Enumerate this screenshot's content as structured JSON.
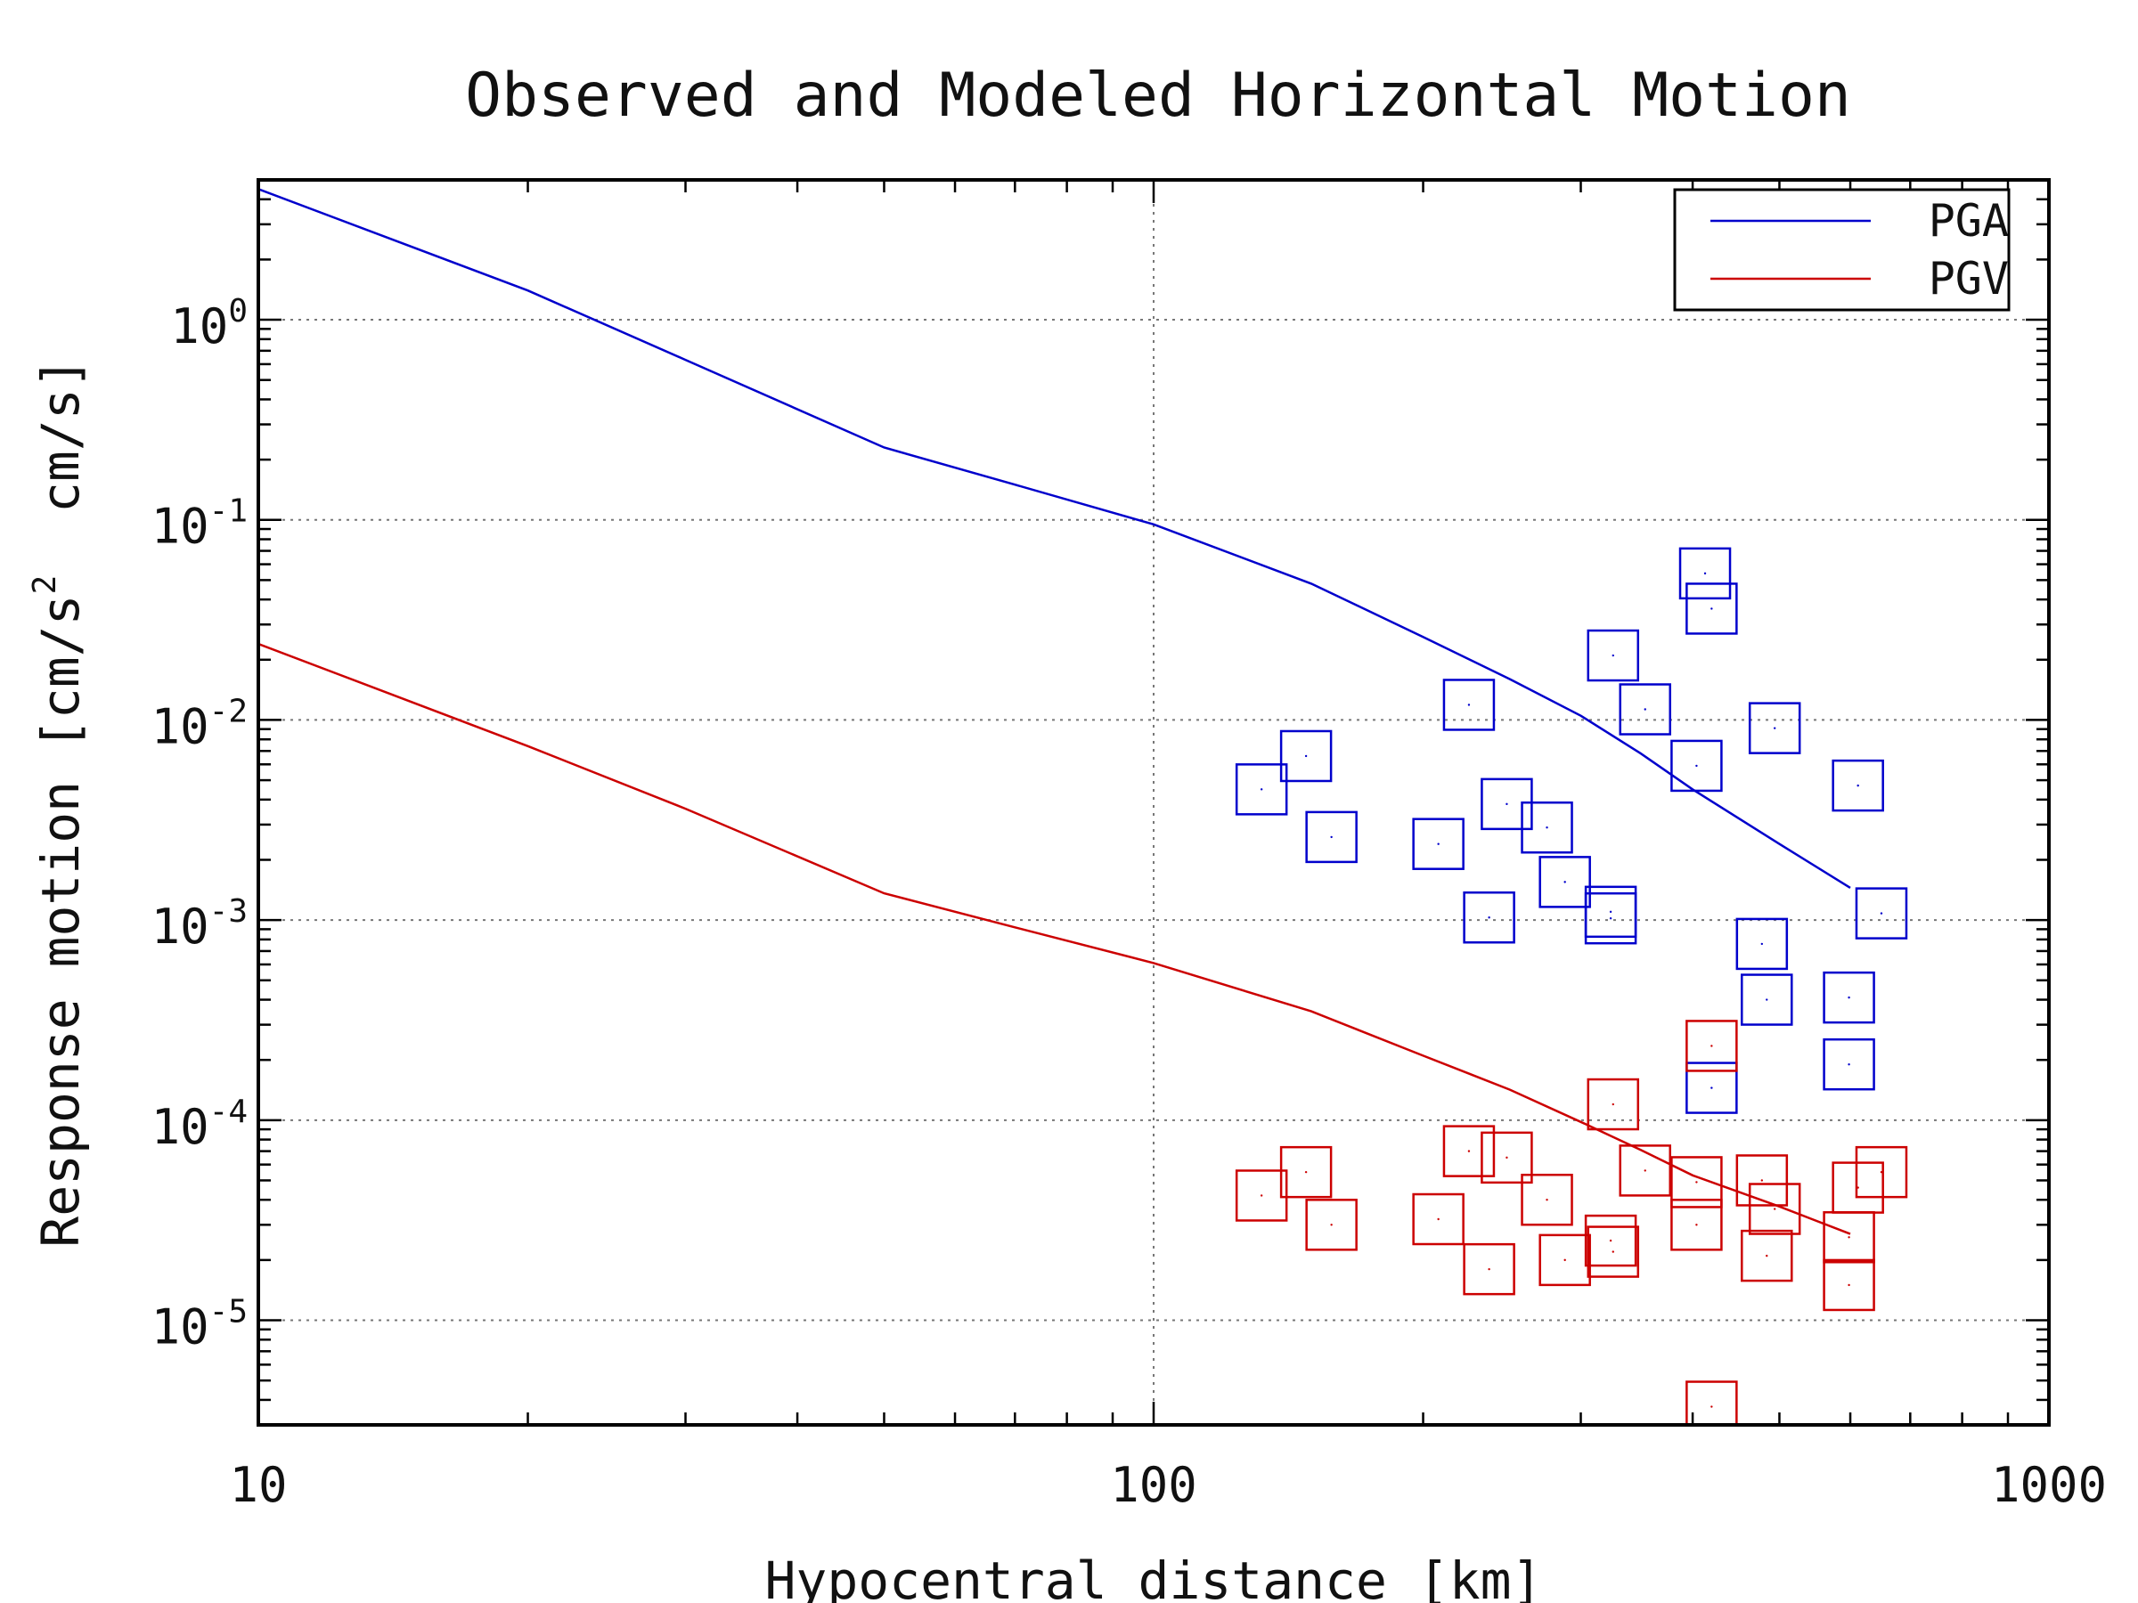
{
  "chart_data": {
    "type": "line",
    "title": "Observed and Modeled Horizontal Motion",
    "xlabel": "Hypocentral distance [km]",
    "ylabel": "Response motion [cm/s² cm/s]",
    "ylabel_parts": {
      "before": "Response motion [cm/s",
      "sup": "2",
      "after": "  cm/s]"
    },
    "x_scale": "log",
    "y_scale": "log",
    "xlim": [
      10,
      1000
    ],
    "ylim": [
      3e-06,
      5
    ],
    "x_ticks": [
      {
        "value": 10,
        "label": "10"
      },
      {
        "value": 100,
        "label": "100"
      },
      {
        "value": 1000,
        "label": "1000"
      }
    ],
    "y_ticks": [
      {
        "value": 1,
        "label": "10",
        "exp": "0"
      },
      {
        "value": 0.1,
        "label": "10",
        "exp": "-1"
      },
      {
        "value": 0.01,
        "label": "10",
        "exp": "-2"
      },
      {
        "value": 0.001,
        "label": "10",
        "exp": "-3"
      },
      {
        "value": 0.0001,
        "label": "10",
        "exp": "-4"
      },
      {
        "value": 1e-05,
        "label": "10",
        "exp": "-5"
      }
    ],
    "grid": true,
    "legend_position": "top-right",
    "series": [
      {
        "name": "PGA",
        "color": "#0000cc",
        "model_x": [
          10,
          20,
          30,
          50,
          70,
          100,
          150,
          200,
          250,
          300,
          350,
          400,
          500,
          600
        ],
        "model_y": [
          4.5,
          1.4,
          0.63,
          0.23,
          0.15,
          0.095,
          0.048,
          0.026,
          0.016,
          0.0105,
          0.0068,
          0.0045,
          0.0024,
          0.00145
        ],
        "observed_x": [
          132,
          148,
          158,
          208,
          225,
          237,
          248,
          275,
          288,
          324,
          324,
          326,
          354,
          404,
          413,
          420,
          478,
          484,
          494,
          598,
          612,
          650,
          598,
          420
        ],
        "observed_y": [
          0.0045,
          0.0066,
          0.0026,
          0.0024,
          0.0119,
          0.00103,
          0.0038,
          0.0029,
          0.00155,
          0.0011,
          0.00102,
          0.021,
          0.0113,
          0.0059,
          0.054,
          0.036,
          0.00076,
          0.0004,
          0.0091,
          0.00041,
          0.0047,
          0.00108,
          0.00019,
          0.000145
        ]
      },
      {
        "name": "PGV",
        "color": "#cc0000",
        "model_x": [
          10,
          20,
          30,
          50,
          70,
          100,
          150,
          200,
          250,
          300,
          350,
          400,
          500,
          600
        ],
        "model_y": [
          0.024,
          0.0074,
          0.0036,
          0.00136,
          0.00092,
          0.00061,
          0.00035,
          0.00021,
          0.000142,
          9.8e-05,
          7.1e-05,
          5.3e-05,
          3.7e-05,
          2.7e-05
        ],
        "observed_x": [
          132,
          148,
          158,
          208,
          225,
          237,
          248,
          275,
          288,
          324,
          326,
          326,
          354,
          404,
          404,
          420,
          478,
          484,
          494,
          598,
          598,
          612,
          650,
          420
        ],
        "observed_y": [
          4.2e-05,
          5.5e-05,
          3e-05,
          3.2e-05,
          7e-05,
          1.8e-05,
          6.5e-05,
          4e-05,
          2e-05,
          2.5e-05,
          2.2e-05,
          0.00012,
          5.6e-05,
          3e-05,
          4.9e-05,
          0.000235,
          5e-05,
          2.1e-05,
          3.6e-05,
          2.6e-05,
          1.5e-05,
          4.6e-05,
          5.5e-05,
          3.7e-06
        ]
      }
    ]
  }
}
